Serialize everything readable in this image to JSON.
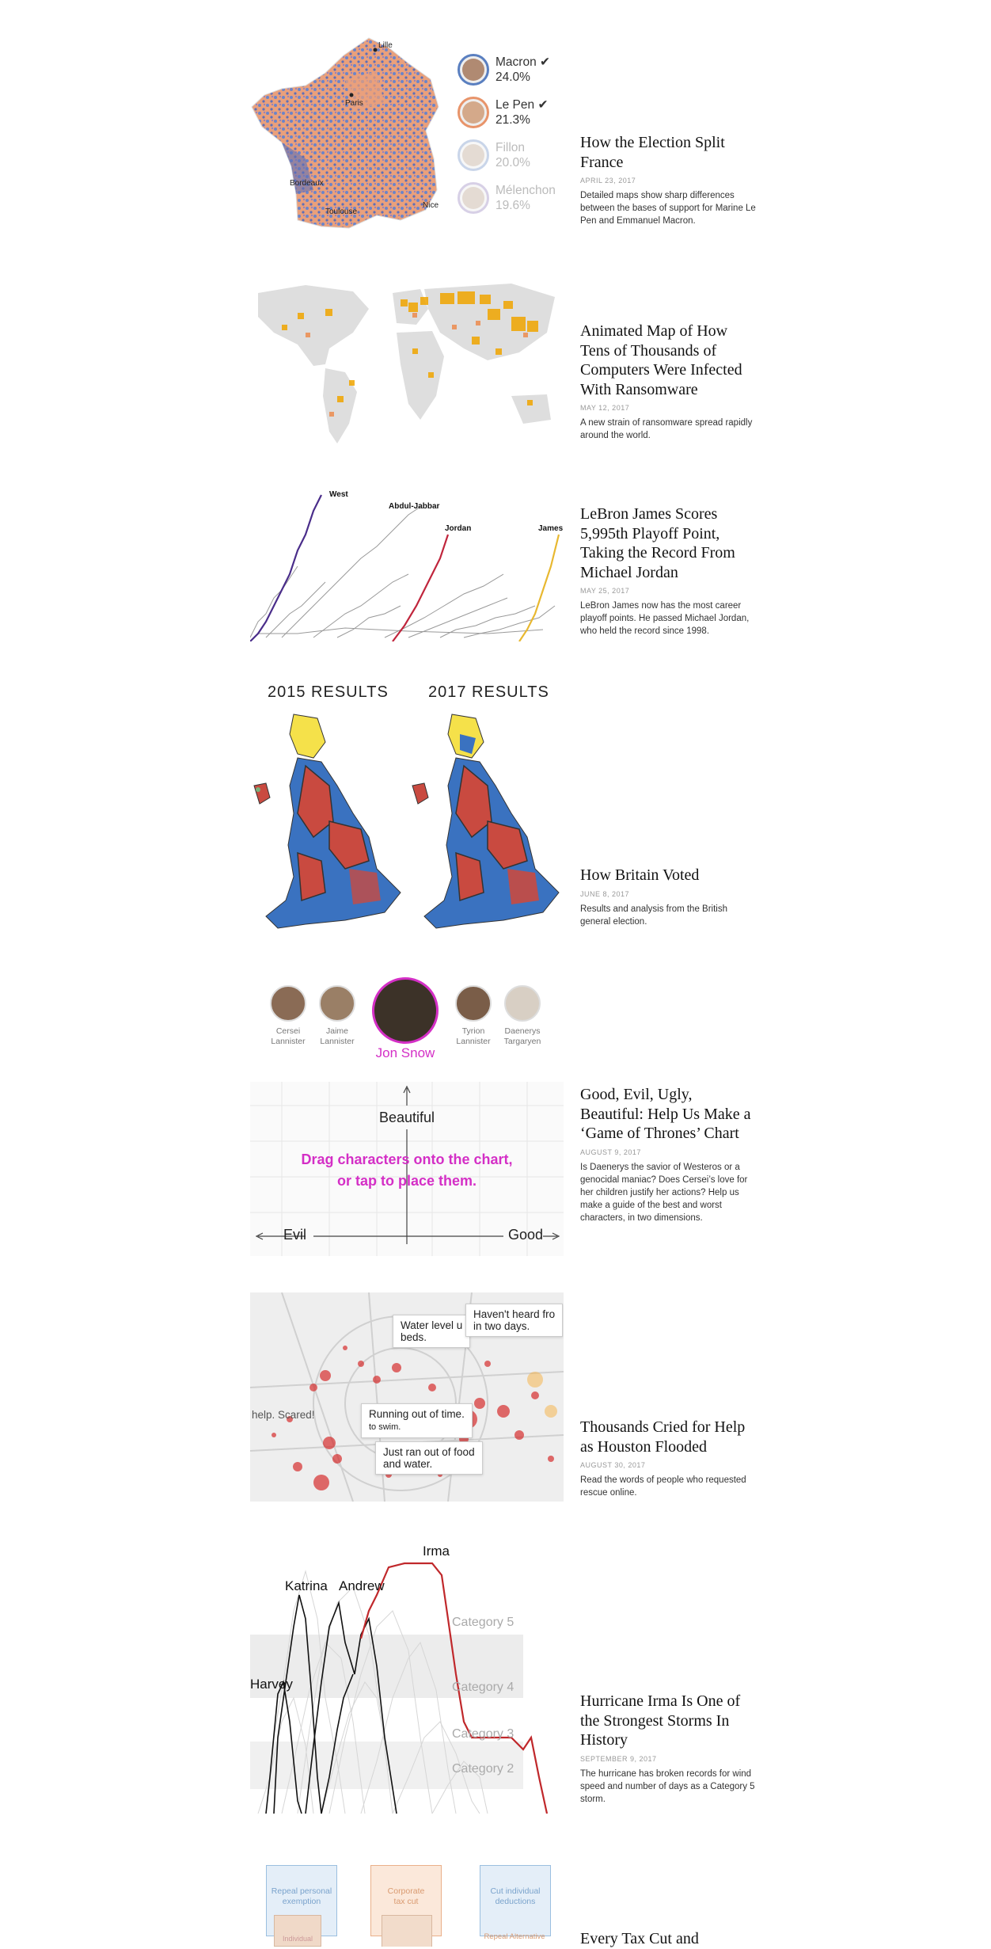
{
  "stories": [
    {
      "headline": "How the Election Split France",
      "date": "April 23, 2017",
      "summary": "Detailed maps show sharp differences between the bases of support for Marine Le Pen and Emmanuel Macron.",
      "map_labels": {
        "lille": "Lille",
        "paris": "Paris",
        "bordeaux": "Bordeaux",
        "toulouse": "Toulouse",
        "nice": "Nice"
      },
      "candidates": [
        {
          "name": "Macron",
          "pct": "24.0%",
          "color": "#5a7fc0",
          "checked": true
        },
        {
          "name": "Le Pen",
          "pct": "21.3%",
          "color": "#e8946a",
          "checked": true
        },
        {
          "name": "Fillon",
          "pct": "20.0%",
          "color": "#8aa4d0",
          "checked": false
        },
        {
          "name": "Mélenchon",
          "pct": "19.6%",
          "color": "#a898c8",
          "checked": false
        }
      ]
    },
    {
      "headline": "Animated Map of How Tens of Thousands of Computers Were Infected With Ransomware",
      "date": "May 12, 2017",
      "summary": "A new strain of ransomware spread rapidly around the world."
    },
    {
      "headline": "LeBron James Scores 5,995th Playoff Point, Taking the Record From Michael Jordan",
      "date": "May 25, 2017",
      "summary": "LeBron James now has the most career playoff points. He passed Michael Jordan, who held the record since 1998.",
      "labels": {
        "west": "West",
        "abdul": "Abdul-Jabbar",
        "jordan": "Jordan",
        "james": "James"
      }
    },
    {
      "headline": "How Britain Voted",
      "date": "June 8, 2017",
      "summary": "Results and analysis from the British general election.",
      "label_2015": "2015 RESULTS",
      "label_2017": "2017 RESULTS"
    },
    {
      "headline": "Good, Evil, Ugly, Beautiful: Help Us Make a ‘Game of Thrones’ Chart",
      "date": "August 9, 2017",
      "summary": "Is Daenerys the savior of Westeros or a genocidal maniac? Does Cersei’s love for her children justify her actions? Help us make a guide of the best and worst characters, in two dimensions.",
      "characters": [
        {
          "name1": "Cersei",
          "name2": "Lannister"
        },
        {
          "name1": "Jaime",
          "name2": "Lannister"
        },
        {
          "name1": "Tyrion",
          "name2": "Lannister"
        },
        {
          "name1": "Daenerys",
          "name2": "Targaryen"
        }
      ],
      "featured": "Jon Snow",
      "axis_top": "Beautiful",
      "axis_left": "Evil",
      "axis_right": "Good",
      "prompt_line1": "Drag characters onto the chart,",
      "prompt_line2": "or tap to place them."
    },
    {
      "headline": "Thousands Cried for Help as Houston Flooded",
      "date": "August 30, 2017",
      "summary": "Read the words of people who requested rescue online.",
      "tooltips": {
        "t1a": "Water level u",
        "t1b": "beds.",
        "t2a": "Haven't heard fro",
        "t2b": "in two days.",
        "t3": "help. Scared!",
        "t4a": "Running out of time.",
        "t4b": "to swim.",
        "t5a": "Just ran out of food",
        "t5b": "and water."
      }
    },
    {
      "headline": "Hurricane Irma Is One of the Strongest Storms In History",
      "date": "September 9, 2017",
      "summary": "The hurricane has broken records for wind speed and number of days as a Category 5 storm.",
      "storms": {
        "irma": "Irma",
        "katrina": "Katrina",
        "andrew": "Andrew",
        "harvey": "Harvey"
      },
      "categories": {
        "c5": "Category 5",
        "c4": "Category 4",
        "c3": "Category 3",
        "c2": "Category 2"
      }
    },
    {
      "headline": "Every Tax Cut and",
      "boxes": [
        {
          "line1": "Repeal personal",
          "line2": "exemption"
        },
        {
          "line1": "Corporate",
          "line2": "tax cut"
        },
        {
          "line1": "Cut individual",
          "line2": "deductions"
        }
      ],
      "sub_left": "Individual",
      "sub_right": "Repeal Alternative"
    }
  ]
}
